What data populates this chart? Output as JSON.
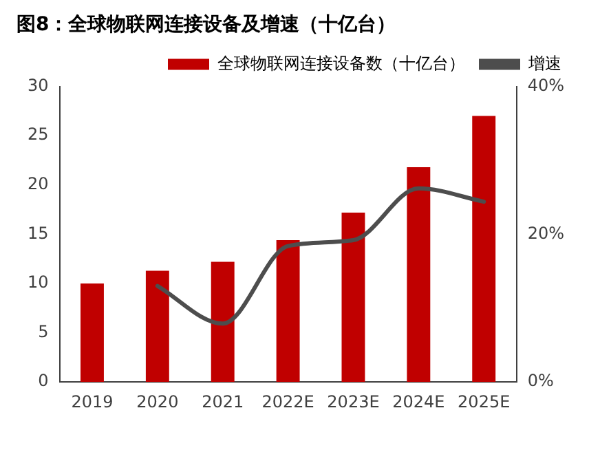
{
  "chart_data": {
    "type": "bar",
    "title": "图8：全球物联网连接设备及增速（十亿台）",
    "categories": [
      "2019",
      "2020",
      "2021",
      "2022E",
      "2023E",
      "2024E",
      "2025E"
    ],
    "series": [
      {
        "name": "全球物联网连接设备数（十亿台）",
        "color": "#c00000",
        "values": [
          10.0,
          11.3,
          12.2,
          14.4,
          17.2,
          21.8,
          27.0
        ]
      },
      {
        "name": "增速",
        "type": "line",
        "axis": "y2",
        "color": "#4d4d4d",
        "values": [
          null,
          13.0,
          7.9,
          18.4,
          19.2,
          26.2,
          24.4
        ]
      }
    ],
    "ylim": [
      0,
      30
    ],
    "yticks": [
      0,
      5,
      10,
      15,
      20,
      25,
      30
    ],
    "y2lim": [
      0,
      40
    ],
    "y2ticks": [
      {
        "value": 0,
        "label": "0%"
      },
      {
        "value": 20,
        "label": "20%"
      },
      {
        "value": 40,
        "label": "40%"
      }
    ],
    "legend": "top",
    "grid": false
  }
}
